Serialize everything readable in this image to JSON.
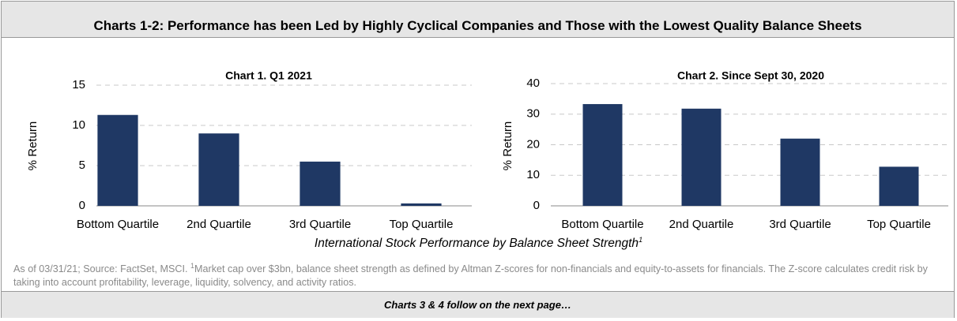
{
  "header": {
    "title": "Charts 1-2: Performance has been Led by Highly Cyclical Companies and Those with the Lowest Quality Balance Sheets"
  },
  "chart_data": [
    {
      "type": "bar",
      "title": "Chart 1. Q1 2021",
      "y_label": "% Return",
      "categories": [
        "Bottom Quartile",
        "2nd Quartile",
        "3rd Quartile",
        "Top Quartile"
      ],
      "values": [
        11.3,
        9.0,
        5.5,
        0.3
      ],
      "color": "#1f3864",
      "ylim": [
        0,
        15
      ],
      "yticks": [
        0,
        5,
        10,
        15
      ],
      "grid": true
    },
    {
      "type": "bar",
      "title": "Chart 2. Since Sept 30, 2020",
      "y_label": "% Return",
      "categories": [
        "Bottom Quartile",
        "2nd Quartile",
        "3rd Quartile",
        "Top Quartile"
      ],
      "values": [
        33.3,
        31.8,
        22.0,
        12.8
      ],
      "color": "#1f3864",
      "ylim": [
        0,
        40
      ],
      "yticks": [
        0,
        10,
        20,
        30,
        40
      ],
      "grid": true
    }
  ],
  "caption": {
    "text": "International Stock Performance by Balance Sheet Strength",
    "marker": "1"
  },
  "footnote": {
    "before": "As of 03/31/21; Source: FactSet, MSCI. ",
    "marker": "1",
    "after": "Market cap over $3bn, balance sheet strength as defined by Altman Z-scores for non-financials and equity-to-assets for financials. The Z-score calculates credit risk by taking into account profitability, leverage, liquidity, solvency, and activity ratios."
  },
  "footer": {
    "text": "Charts 3 & 4 follow on the next page…"
  }
}
